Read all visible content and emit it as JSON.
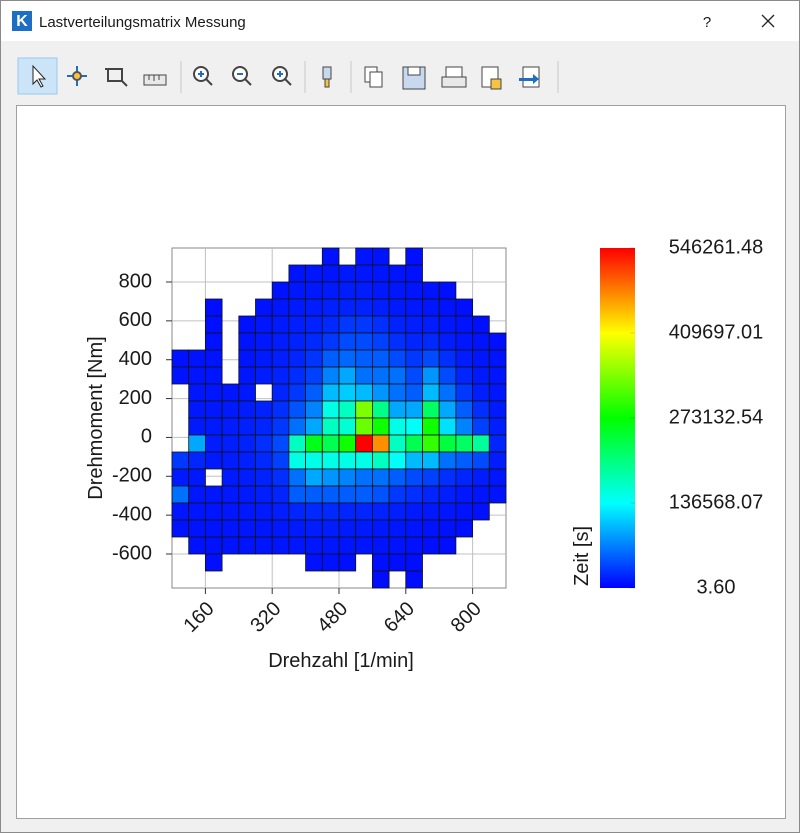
{
  "window": {
    "title": "Lastverteilungsmatrix Messung",
    "app_icon_letter": "K",
    "help_label": "?"
  },
  "chart_data": {
    "type": "heatmap",
    "x_label": "Drehzahl [1/min]",
    "y_label": "Drehmoment [Nm]",
    "xlim": [
      80,
      880
    ],
    "ylim": [
      -775,
      975
    ],
    "xticks": [
      160,
      320,
      480,
      640,
      800
    ],
    "yticks": [
      -600,
      -400,
      -200,
      0,
      200,
      400,
      600,
      800
    ],
    "grid": true,
    "xbins": [
      80,
      120,
      160,
      200,
      240,
      280,
      320,
      360,
      400,
      440,
      480,
      520,
      560,
      600,
      640,
      680,
      720,
      760,
      800,
      840,
      880
    ],
    "ybins": [
      975,
      887.5,
      800,
      712.5,
      625,
      537.5,
      450,
      362.5,
      275,
      187.5,
      100,
      12.5,
      -75,
      -162.5,
      -250,
      -337.5,
      -425,
      -512.5,
      -600,
      -687.5,
      -775
    ],
    "z": [
      [
        null,
        null,
        null,
        null,
        null,
        null,
        null,
        null,
        null,
        9000,
        null,
        11000,
        10000,
        null,
        8000,
        null,
        null,
        null,
        null,
        null
      ],
      [
        null,
        null,
        null,
        null,
        null,
        null,
        null,
        10000,
        12000,
        11000,
        13000,
        12000,
        11000,
        10000,
        9000,
        null,
        null,
        null,
        null,
        null
      ],
      [
        null,
        null,
        null,
        null,
        null,
        null,
        9000,
        12000,
        13000,
        14000,
        15000,
        15000,
        13000,
        12000,
        11000,
        10000,
        8000,
        null,
        null,
        null
      ],
      [
        null,
        null,
        7000,
        null,
        null,
        10000,
        12000,
        14000,
        15000,
        17000,
        18000,
        18000,
        16000,
        14000,
        13000,
        12000,
        10000,
        8000,
        null,
        null
      ],
      [
        null,
        null,
        8000,
        null,
        9000,
        12000,
        14000,
        16000,
        18000,
        22000,
        30000,
        30000,
        25000,
        18000,
        16000,
        15000,
        12000,
        10000,
        8000,
        null
      ],
      [
        null,
        null,
        9000,
        null,
        10000,
        13000,
        15000,
        18000,
        22000,
        30000,
        40000,
        40000,
        35000,
        25000,
        20000,
        22000,
        15000,
        12000,
        10000,
        8000
      ],
      [
        9000,
        10000,
        10000,
        null,
        11000,
        14000,
        16000,
        20000,
        28000,
        50000,
        55000,
        50000,
        50000,
        40000,
        30000,
        40000,
        25000,
        15000,
        12000,
        10000
      ],
      [
        10000,
        11000,
        11000,
        null,
        12000,
        15000,
        18000,
        24000,
        35000,
        70000,
        90000,
        60000,
        60000,
        60000,
        40000,
        80000,
        40000,
        20000,
        14000,
        11000
      ],
      [
        null,
        12000,
        12000,
        12000,
        13000,
        null,
        20000,
        30000,
        50000,
        100000,
        110000,
        100000,
        80000,
        60000,
        50000,
        100000,
        60000,
        30000,
        16000,
        12000
      ],
      [
        null,
        13000,
        13000,
        14000,
        15000,
        18000,
        25000,
        45000,
        70000,
        150000,
        170000,
        340000,
        200000,
        90000,
        90000,
        220000,
        90000,
        50000,
        25000,
        14000
      ],
      [
        null,
        14000,
        14000,
        15000,
        17000,
        20000,
        30000,
        60000,
        90000,
        170000,
        160000,
        330000,
        280000,
        150000,
        140000,
        280000,
        120000,
        70000,
        35000,
        16000
      ],
      [
        null,
        90000,
        15000,
        16000,
        18000,
        25000,
        40000,
        170000,
        260000,
        230000,
        280000,
        546261.48,
        470000,
        170000,
        230000,
        300000,
        240000,
        220000,
        190000,
        20000
      ],
      [
        30000,
        20000,
        14000,
        15000,
        17000,
        22000,
        35000,
        150000,
        150000,
        150000,
        150000,
        150000,
        170000,
        140000,
        100000,
        100000,
        60000,
        50000,
        40000,
        15000
      ],
      [
        14000,
        13000,
        null,
        14000,
        15000,
        18000,
        25000,
        60000,
        90000,
        80000,
        70000,
        60000,
        60000,
        50000,
        40000,
        35000,
        25000,
        20000,
        15000,
        12000
      ],
      [
        60000,
        12000,
        12000,
        13000,
        14000,
        16000,
        20000,
        50000,
        50000,
        50000,
        50000,
        50000,
        45000,
        30000,
        25000,
        20000,
        16000,
        13000,
        11000,
        10000
      ],
      [
        12000,
        11000,
        11000,
        12000,
        13000,
        14000,
        16000,
        20000,
        22000,
        22000,
        20000,
        20000,
        18000,
        16000,
        14000,
        13000,
        12000,
        10000,
        9000,
        null
      ],
      [
        10000,
        10000,
        10000,
        11000,
        12000,
        12000,
        13000,
        14000,
        15000,
        15000,
        14000,
        14000,
        13000,
        12000,
        11000,
        10000,
        9000,
        8000,
        null,
        null
      ],
      [
        null,
        9000,
        9000,
        10000,
        10000,
        11000,
        11000,
        12000,
        12000,
        12000,
        11000,
        11000,
        10000,
        10000,
        9000,
        8000,
        7000,
        null,
        null,
        null
      ],
      [
        null,
        null,
        8000,
        null,
        null,
        null,
        null,
        null,
        9000,
        9000,
        8000,
        null,
        8000,
        7000,
        7000,
        null,
        null,
        null,
        null,
        null
      ],
      [
        null,
        null,
        null,
        null,
        null,
        null,
        null,
        null,
        null,
        null,
        null,
        null,
        7000,
        null,
        7000,
        null,
        null,
        null,
        null,
        null
      ]
    ],
    "colormap": [
      "#0000ff",
      "#00ffff",
      "#00ff00",
      "#ffff00",
      "#ff0000"
    ],
    "colorbar": {
      "title": "Zeit [s]",
      "zlim": [
        3.6,
        546261.48
      ],
      "ticks": [
        {
          "value": 3.6,
          "label": "3.60"
        },
        136568.07,
        273132.54,
        409697.01,
        546261.48
      ]
    }
  }
}
